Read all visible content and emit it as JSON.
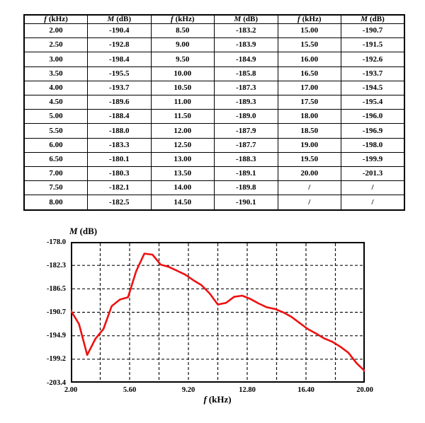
{
  "table": {
    "headers": [
      {
        "symbol": "f",
        "unit": "(kHz)"
      },
      {
        "symbol": "M",
        "unit": "(dB)"
      },
      {
        "symbol": "f",
        "unit": "(kHz)"
      },
      {
        "symbol": "M",
        "unit": "(dB)"
      },
      {
        "symbol": "f",
        "unit": "(kHz)"
      },
      {
        "symbol": "M",
        "unit": "(dB)"
      }
    ],
    "rows": [
      [
        "2.00",
        "-190.4",
        "8.50",
        "-183.2",
        "15.00",
        "-190.7"
      ],
      [
        "2.50",
        "-192.8",
        "9.00",
        "-183.9",
        "15.50",
        "-191.5"
      ],
      [
        "3.00",
        "-198.4",
        "9.50",
        "-184.9",
        "16.00",
        "-192.6"
      ],
      [
        "3.50",
        "-195.5",
        "10.00",
        "-185.8",
        "16.50",
        "-193.7"
      ],
      [
        "4.00",
        "-193.7",
        "10.50",
        "-187.3",
        "17.00",
        "-194.5"
      ],
      [
        "4.50",
        "-189.6",
        "11.00",
        "-189.3",
        "17.50",
        "-195.4"
      ],
      [
        "5.00",
        "-188.4",
        "11.50",
        "-189.0",
        "18.00",
        "-196.0"
      ],
      [
        "5.50",
        "-188.0",
        "12.00",
        "-187.9",
        "18.50",
        "-196.9"
      ],
      [
        "6.00",
        "-183.3",
        "12.50",
        "-187.7",
        "19.00",
        "-198.0"
      ],
      [
        "6.50",
        "-180.1",
        "13.00",
        "-188.3",
        "19.50",
        "-199.9"
      ],
      [
        "7.00",
        "-180.3",
        "13.50",
        "-189.1",
        "20.00",
        "-201.3"
      ],
      [
        "7.50",
        "-182.1",
        "14.00",
        "-189.8",
        "/",
        "/"
      ],
      [
        "8.00",
        "-182.5",
        "14.50",
        "-190.1",
        "/",
        "/"
      ]
    ]
  },
  "chart_data": {
    "type": "line",
    "title": "",
    "ylabel": "M (dB)",
    "xlabel": "f (kHz)",
    "ylabel_parts": {
      "symbol": "M",
      "unit": "(dB)"
    },
    "xlabel_parts": {
      "symbol": "f",
      "unit": "(kHz)"
    },
    "x": [
      2.0,
      2.5,
      3.0,
      3.5,
      4.0,
      4.5,
      5.0,
      5.5,
      6.0,
      6.5,
      7.0,
      7.5,
      8.0,
      8.5,
      9.0,
      9.5,
      10.0,
      10.5,
      11.0,
      11.5,
      12.0,
      12.5,
      13.0,
      13.5,
      14.0,
      14.5,
      15.0,
      15.5,
      16.0,
      16.5,
      17.0,
      17.5,
      18.0,
      18.5,
      19.0,
      19.5,
      20.0
    ],
    "y": [
      -190.4,
      -192.8,
      -198.4,
      -195.5,
      -193.7,
      -189.6,
      -188.4,
      -188.0,
      -183.3,
      -180.1,
      -180.3,
      -182.1,
      -182.5,
      -183.2,
      -183.9,
      -184.9,
      -185.8,
      -187.3,
      -189.3,
      -189.0,
      -187.9,
      -187.7,
      -188.3,
      -189.1,
      -189.8,
      -190.1,
      -190.7,
      -191.5,
      -192.6,
      -193.7,
      -194.5,
      -195.4,
      -196.0,
      -196.9,
      -198.0,
      -199.9,
      -201.3
    ],
    "xlim": [
      2.0,
      20.0
    ],
    "ylim": [
      -203.4,
      -178.0
    ],
    "x_tick_labels": [
      "2.00",
      "5.60",
      "9.20",
      "12.80",
      "16.40",
      "20.00"
    ],
    "y_tick_labels": [
      "-178.0",
      "-182.3",
      "-186.5",
      "-190.7",
      "-194.9",
      "-199.2",
      "-203.4"
    ],
    "x_grid_step": 1.8,
    "grid": "dashed",
    "legend": "none",
    "line_color": "#ee1111",
    "grid_color": "#111111",
    "border_color": "#000000"
  }
}
